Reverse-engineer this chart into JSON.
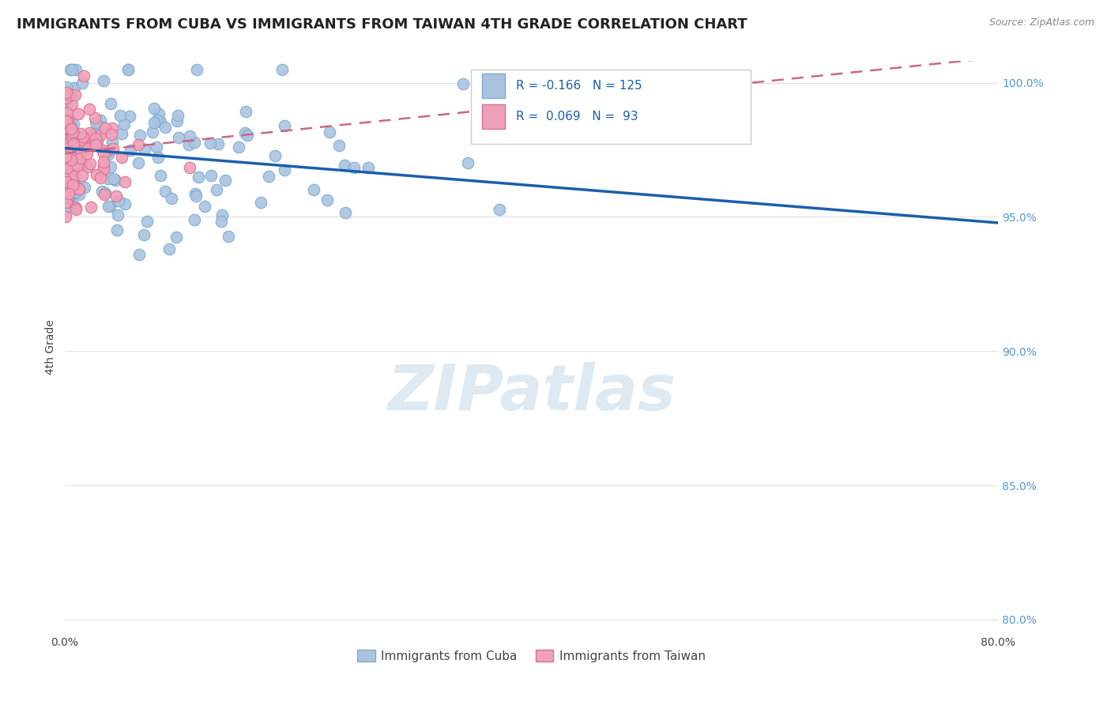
{
  "title": "IMMIGRANTS FROM CUBA VS IMMIGRANTS FROM TAIWAN 4TH GRADE CORRELATION CHART",
  "source_text": "Source: ZipAtlas.com",
  "ylabel": "4th Grade",
  "xlim": [
    0.0,
    0.8
  ],
  "ylim": [
    0.795,
    1.008
  ],
  "xticks": [
    0.0,
    0.1,
    0.2,
    0.3,
    0.4,
    0.5,
    0.6,
    0.7,
    0.8
  ],
  "xticklabels": [
    "0.0%",
    "",
    "",
    "",
    "",
    "",
    "",
    "",
    "80.0%"
  ],
  "yticks": [
    0.8,
    0.85,
    0.9,
    0.95,
    1.0
  ],
  "yticklabels": [
    "80.0%",
    "85.0%",
    "90.0%",
    "95.0%",
    "100.0%"
  ],
  "blue_color": "#aac4e0",
  "blue_edge": "#7aaad0",
  "pink_color": "#f0a0b8",
  "pink_edge": "#d87090",
  "blue_line_color": "#1a5faa",
  "pink_line_color": "#cc6688",
  "r_blue": -0.166,
  "r_pink": 0.069,
  "n_blue": 125,
  "n_pink": 93,
  "watermark": "ZIPatlas",
  "title_fontsize": 13,
  "axis_label_fontsize": 10,
  "tick_fontsize": 10,
  "right_tick_color": "#5599cc",
  "background_color": "#ffffff",
  "grid_color": "#e0e0e0"
}
